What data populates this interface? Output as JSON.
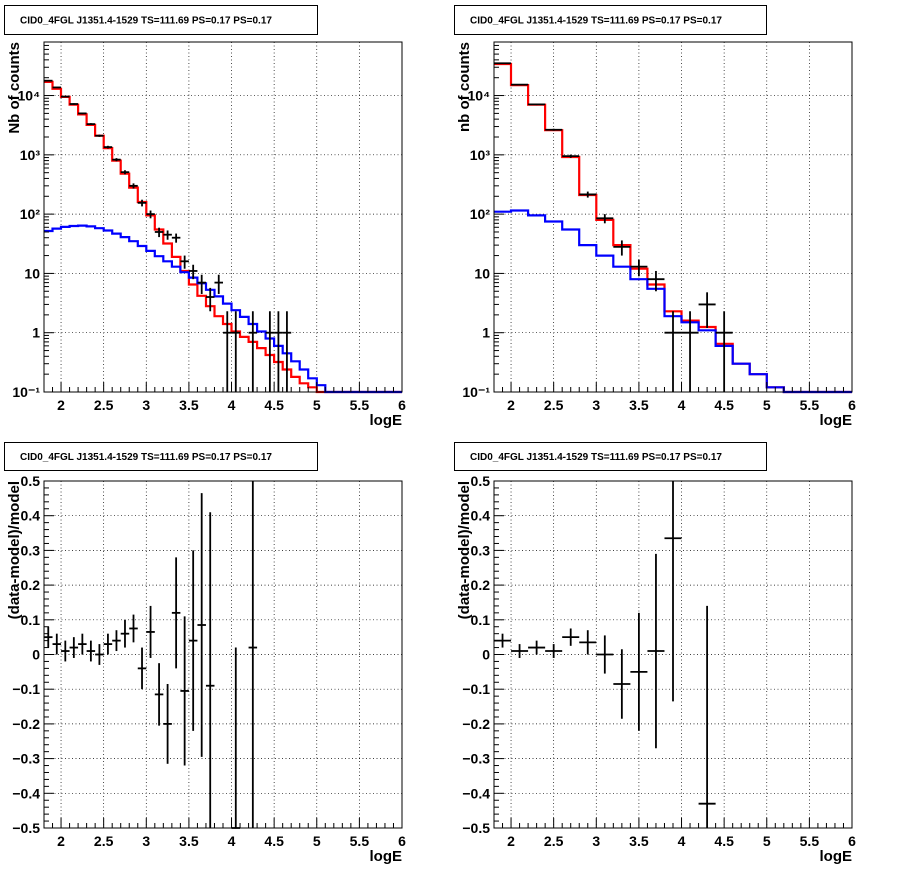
{
  "chart_data": [
    {
      "type": "histogram",
      "title": "CID0_4FGL J1351.4-1529 TS=111.69 PS=0.17 PS=0.17",
      "xlabel": "logE",
      "ylabel": "Nb of counts",
      "xlim": [
        1.8,
        6.0
      ],
      "ylim": [
        0.1,
        80000
      ],
      "yscale": "log",
      "grid": true,
      "x_ticks": [
        2,
        2.5,
        3,
        3.5,
        4,
        4.5,
        5,
        5.5,
        6
      ],
      "x_tick_labels": [
        "2",
        "2.5",
        "3",
        "3.5",
        "4",
        "4.5",
        "5",
        "5.5",
        "6"
      ],
      "y_ticks": [
        0.1,
        1,
        10,
        100,
        1000,
        10000
      ],
      "y_tick_labels": [
        "10⁻¹",
        "1",
        "10",
        "10²",
        "10³",
        "10⁴"
      ],
      "bin_edges": [
        1.8,
        1.9,
        2.0,
        2.1,
        2.2,
        2.3,
        2.4,
        2.5,
        2.6,
        2.7,
        2.8,
        2.9,
        3.0,
        3.1,
        3.2,
        3.3,
        3.4,
        3.5,
        3.6,
        3.7,
        3.8,
        3.9,
        4.0,
        4.1,
        4.2,
        4.3,
        4.4,
        4.5,
        4.6,
        4.7,
        4.8,
        4.9,
        5.0,
        5.1,
        5.2,
        5.3,
        5.4,
        5.5,
        5.6,
        5.7,
        5.8,
        5.9,
        6.0
      ],
      "series": [
        {
          "color": "#ff0000",
          "values": [
            17000,
            13000,
            9500,
            7000,
            4800,
            3200,
            2100,
            1300,
            800,
            480,
            280,
            160,
            95,
            55,
            32,
            19,
            11,
            6.5,
            4.2,
            2.8,
            1.9,
            1.4,
            1.05,
            0.85,
            0.7,
            0.55,
            0.42,
            0.32,
            0.24,
            0.18,
            0.14,
            0.12,
            0.1,
            0.1,
            0.1,
            0.1,
            0.1,
            0.1,
            0.1,
            0.1,
            0.1,
            0.1
          ]
        },
        {
          "color": "#0000ff",
          "values": [
            52,
            57,
            61,
            63,
            64,
            62,
            58,
            53,
            47,
            41,
            35,
            29,
            24,
            19.5,
            16,
            13,
            10.5,
            8.5,
            6.8,
            5.3,
            4.1,
            3.1,
            2.4,
            1.85,
            1.4,
            1.05,
            0.8,
            0.6,
            0.45,
            0.33,
            0.24,
            0.17,
            0.13,
            0.1,
            0.1,
            0.1,
            0.1,
            0.1,
            0.1,
            0.1,
            0.1,
            0.1
          ]
        }
      ],
      "points": [
        {
          "x": 1.85,
          "y": 17800,
          "ylo": 17600,
          "yhi": 18000
        },
        {
          "x": 1.95,
          "y": 13700,
          "ylo": 13500,
          "yhi": 13900
        },
        {
          "x": 2.05,
          "y": 9600,
          "ylo": 9400,
          "yhi": 9800
        },
        {
          "x": 2.15,
          "y": 7200,
          "ylo": 7000,
          "yhi": 7400
        },
        {
          "x": 2.25,
          "y": 5000,
          "ylo": 4850,
          "yhi": 5150
        },
        {
          "x": 2.35,
          "y": 3300,
          "ylo": 3180,
          "yhi": 3420
        },
        {
          "x": 2.45,
          "y": 2100,
          "ylo": 2010,
          "yhi": 2190
        },
        {
          "x": 2.55,
          "y": 1350,
          "ylo": 1280,
          "yhi": 1420
        },
        {
          "x": 2.65,
          "y": 830,
          "ylo": 780,
          "yhi": 880
        },
        {
          "x": 2.75,
          "y": 510,
          "ylo": 470,
          "yhi": 550
        },
        {
          "x": 2.85,
          "y": 300,
          "ylo": 270,
          "yhi": 330
        },
        {
          "x": 2.95,
          "y": 155,
          "ylo": 135,
          "yhi": 175
        },
        {
          "x": 3.05,
          "y": 100,
          "ylo": 85,
          "yhi": 115
        },
        {
          "x": 3.15,
          "y": 50,
          "ylo": 41,
          "yhi": 59
        },
        {
          "x": 3.25,
          "y": 45,
          "ylo": 37,
          "yhi": 53
        },
        {
          "x": 3.35,
          "y": 40,
          "ylo": 33,
          "yhi": 47
        },
        {
          "x": 3.45,
          "y": 16,
          "ylo": 12,
          "yhi": 20
        },
        {
          "x": 3.55,
          "y": 11,
          "ylo": 8,
          "yhi": 14
        },
        {
          "x": 3.65,
          "y": 7,
          "ylo": 4.5,
          "yhi": 9.5
        },
        {
          "x": 3.75,
          "y": 4,
          "ylo": 2.3,
          "yhi": 5.7
        },
        {
          "x": 3.85,
          "y": 7,
          "ylo": 4.5,
          "yhi": 9.5
        },
        {
          "x": 3.95,
          "y": 1,
          "ylo": 0.1,
          "yhi": 2.3
        },
        {
          "x": 4.05,
          "y": 1,
          "ylo": 0.1,
          "yhi": 2.3
        },
        {
          "x": 4.25,
          "y": 1,
          "ylo": 0.1,
          "yhi": 2.3
        },
        {
          "x": 4.45,
          "y": 1,
          "ylo": 0.1,
          "yhi": 2.3
        },
        {
          "x": 4.55,
          "y": 1,
          "ylo": 0.1,
          "yhi": 2.3
        },
        {
          "x": 4.65,
          "y": 1,
          "ylo": 0.1,
          "yhi": 2.3
        }
      ]
    },
    {
      "type": "histogram",
      "title": "CID0_4FGL J1351.4-1529 TS=111.69 PS=0.17 PS=0.17",
      "xlabel": "logE",
      "ylabel": "nb of counts",
      "xlim": [
        1.8,
        6.0
      ],
      "ylim": [
        0.1,
        80000
      ],
      "yscale": "log",
      "grid": true,
      "x_ticks": [
        2,
        2.5,
        3,
        3.5,
        4,
        4.5,
        5,
        5.5,
        6
      ],
      "x_tick_labels": [
        "2",
        "2.5",
        "3",
        "3.5",
        "4",
        "4.5",
        "5",
        "5.5",
        "6"
      ],
      "y_ticks": [
        0.1,
        1,
        10,
        100,
        1000,
        10000
      ],
      "y_tick_labels": [
        "10⁻¹",
        "1",
        "10",
        "10²",
        "10³",
        "10⁴"
      ],
      "bin_edges": [
        1.8,
        2.0,
        2.2,
        2.4,
        2.6,
        2.8,
        3.0,
        3.2,
        3.4,
        3.6,
        3.8,
        4.0,
        4.2,
        4.4,
        4.6,
        4.8,
        5.0,
        5.2,
        5.4,
        5.6,
        5.8,
        6.0
      ],
      "series": [
        {
          "color": "#ff0000",
          "values": [
            34000,
            15000,
            7000,
            2600,
            920,
            210,
            80,
            30,
            12,
            6.5,
            2.3,
            1.6,
            1.25,
            0.65,
            0.3,
            0.2,
            0.12,
            0.1,
            0.1,
            0.1,
            0.1
          ]
        },
        {
          "color": "#0000ff",
          "values": [
            110,
            115,
            95,
            75,
            55,
            30,
            20,
            13,
            8,
            5.5,
            1.9,
            1.5,
            1.1,
            0.6,
            0.3,
            0.2,
            0.12,
            0.1,
            0.1,
            0.1,
            0.1
          ]
        }
      ],
      "points": [
        {
          "x": 1.9,
          "y": 35000,
          "ylo": 34600,
          "yhi": 35400
        },
        {
          "x": 2.1,
          "y": 15300,
          "ylo": 15000,
          "yhi": 15600
        },
        {
          "x": 2.3,
          "y": 7100,
          "ylo": 6900,
          "yhi": 7300
        },
        {
          "x": 2.5,
          "y": 2650,
          "ylo": 2550,
          "yhi": 2750
        },
        {
          "x": 2.7,
          "y": 950,
          "ylo": 890,
          "yhi": 1010
        },
        {
          "x": 2.9,
          "y": 215,
          "ylo": 190,
          "yhi": 240
        },
        {
          "x": 3.1,
          "y": 85,
          "ylo": 70,
          "yhi": 100
        },
        {
          "x": 3.3,
          "y": 28,
          "ylo": 20,
          "yhi": 36
        },
        {
          "x": 3.5,
          "y": 13,
          "ylo": 9,
          "yhi": 17
        },
        {
          "x": 3.7,
          "y": 8,
          "ylo": 5,
          "yhi": 11
        },
        {
          "x": 3.9,
          "y": 1,
          "ylo": 0.1,
          "yhi": 2.3
        },
        {
          "x": 4.1,
          "y": 1,
          "ylo": 0.1,
          "yhi": 2.3
        },
        {
          "x": 4.3,
          "y": 3,
          "ylo": 1.2,
          "yhi": 4.8
        },
        {
          "x": 4.5,
          "y": 1,
          "ylo": 0.1,
          "yhi": 2.3
        }
      ]
    },
    {
      "type": "scatter",
      "title": "CID0_4FGL J1351.4-1529 TS=111.69 PS=0.17 PS=0.17",
      "xlabel": "logE",
      "ylabel": "(data-model)/model",
      "xlim": [
        1.8,
        6.0
      ],
      "ylim": [
        -0.5,
        0.5
      ],
      "grid": true,
      "x_ticks": [
        2,
        2.5,
        3,
        3.5,
        4,
        4.5,
        5,
        5.5,
        6
      ],
      "x_tick_labels": [
        "2",
        "2.5",
        "3",
        "3.5",
        "4",
        "4.5",
        "5",
        "5.5",
        "6"
      ],
      "y_ticks": [
        -0.5,
        -0.4,
        -0.3,
        -0.2,
        -0.1,
        0,
        0.1,
        0.2,
        0.3,
        0.4,
        0.5
      ],
      "y_tick_labels": [
        "−0.5",
        "−0.4",
        "−0.3",
        "−0.2",
        "−0.1",
        "0",
        "0.1",
        "0.2",
        "0.3",
        "0.4",
        "0.5"
      ],
      "points": [
        {
          "x": 1.85,
          "y": 0.05,
          "yerr": 0.03,
          "xerr": 0.05
        },
        {
          "x": 1.95,
          "y": 0.03,
          "yerr": 0.03,
          "xerr": 0.05
        },
        {
          "x": 2.05,
          "y": 0.01,
          "yerr": 0.03,
          "xerr": 0.05
        },
        {
          "x": 2.15,
          "y": 0.02,
          "yerr": 0.03,
          "xerr": 0.05
        },
        {
          "x": 2.25,
          "y": 0.03,
          "yerr": 0.03,
          "xerr": 0.05
        },
        {
          "x": 2.35,
          "y": 0.01,
          "yerr": 0.03,
          "xerr": 0.05
        },
        {
          "x": 2.45,
          "y": 0.0,
          "yerr": 0.03,
          "xerr": 0.05
        },
        {
          "x": 2.55,
          "y": 0.03,
          "yerr": 0.03,
          "xerr": 0.05
        },
        {
          "x": 2.65,
          "y": 0.04,
          "yerr": 0.03,
          "xerr": 0.05
        },
        {
          "x": 2.75,
          "y": 0.06,
          "yerr": 0.04,
          "xerr": 0.05
        },
        {
          "x": 2.85,
          "y": 0.075,
          "yerr": 0.04,
          "xerr": 0.05
        },
        {
          "x": 2.95,
          "y": -0.04,
          "yerr": 0.06,
          "xerr": 0.05
        },
        {
          "x": 3.05,
          "y": 0.065,
          "yerr": 0.075,
          "xerr": 0.05
        },
        {
          "x": 3.15,
          "y": -0.115,
          "yerr": 0.09,
          "xerr": 0.05
        },
        {
          "x": 3.25,
          "y": -0.2,
          "yerr": 0.115,
          "xerr": 0.05
        },
        {
          "x": 3.35,
          "y": 0.12,
          "yerr": 0.16,
          "xerr": 0.05
        },
        {
          "x": 3.45,
          "y": -0.105,
          "yerr": 0.215,
          "xerr": 0.05
        },
        {
          "x": 3.55,
          "y": 0.04,
          "yerr": 0.26,
          "xerr": 0.05
        },
        {
          "x": 3.65,
          "y": 0.085,
          "yerr": 0.38,
          "xerr": 0.05
        },
        {
          "x": 3.75,
          "y": -0.09,
          "yerr": 0.5,
          "xerr": 0.05
        },
        {
          "x": 4.05,
          "y": -0.5,
          "yerr": 0.52,
          "xerr": 0.05
        },
        {
          "x": 4.25,
          "y": 0.02,
          "yerr": 0.6,
          "xerr": 0.05
        }
      ]
    },
    {
      "type": "scatter",
      "title": "CID0_4FGL J1351.4-1529 TS=111.69 PS=0.17 PS=0.17",
      "xlabel": "logE",
      "ylabel": "(data-model)/model",
      "xlim": [
        1.8,
        6.0
      ],
      "ylim": [
        -0.5,
        0.5
      ],
      "grid": true,
      "x_ticks": [
        2,
        2.5,
        3,
        3.5,
        4,
        4.5,
        5,
        5.5,
        6
      ],
      "x_tick_labels": [
        "2",
        "2.5",
        "3",
        "3.5",
        "4",
        "4.5",
        "5",
        "5.5",
        "6"
      ],
      "y_ticks": [
        -0.5,
        -0.4,
        -0.3,
        -0.2,
        -0.1,
        0,
        0.1,
        0.2,
        0.3,
        0.4,
        0.5
      ],
      "y_tick_labels": [
        "−0.5",
        "−0.4",
        "−0.3",
        "−0.2",
        "−0.1",
        "0",
        "0.1",
        "0.2",
        "0.3",
        "0.4",
        "0.5"
      ],
      "points": [
        {
          "x": 1.9,
          "y": 0.04,
          "yerr": 0.02,
          "xerr": 0.1
        },
        {
          "x": 2.1,
          "y": 0.01,
          "yerr": 0.02,
          "xerr": 0.1
        },
        {
          "x": 2.3,
          "y": 0.02,
          "yerr": 0.02,
          "xerr": 0.1
        },
        {
          "x": 2.5,
          "y": 0.01,
          "yerr": 0.02,
          "xerr": 0.1
        },
        {
          "x": 2.7,
          "y": 0.05,
          "yerr": 0.025,
          "xerr": 0.1
        },
        {
          "x": 2.9,
          "y": 0.035,
          "yerr": 0.035,
          "xerr": 0.1
        },
        {
          "x": 3.1,
          "y": 0.0,
          "yerr": 0.055,
          "xerr": 0.1
        },
        {
          "x": 3.3,
          "y": -0.085,
          "yerr": 0.1,
          "xerr": 0.1
        },
        {
          "x": 3.5,
          "y": -0.05,
          "yerr": 0.17,
          "xerr": 0.1
        },
        {
          "x": 3.7,
          "y": 0.01,
          "yerr": 0.28,
          "xerr": 0.1
        },
        {
          "x": 3.9,
          "y": 0.335,
          "yerr": 0.47,
          "xerr": 0.1
        },
        {
          "x": 4.3,
          "y": -0.43,
          "yerr": 0.57,
          "xerr": 0.1
        }
      ]
    }
  ]
}
